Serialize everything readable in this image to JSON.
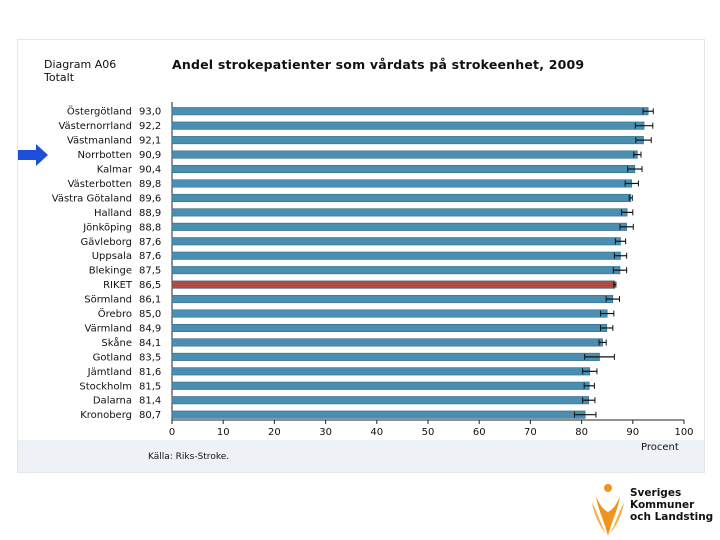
{
  "diagram": {
    "code": "Diagram A06",
    "subtitle": "Totalt",
    "title": "Andel strokepatienter som vårdats på strokeenhet, 2009",
    "source": "Källa: Riks-Stroke.",
    "x_unit": "Procent"
  },
  "branding": {
    "line1": "Sveriges",
    "line2": "Kommuner",
    "line3": "och Landsting"
  },
  "highlight_marker": "Norrbotten",
  "colors": {
    "bar": "#4a8fb1",
    "bar_highlight": "#b14a43",
    "arrow": "#1e4fd8",
    "logo_orange": "#f0941e"
  },
  "chart_data": {
    "type": "bar",
    "orientation": "horizontal",
    "title": "Andel strokepatienter som vårdats på strokeenhet, 2009",
    "xlabel": "Procent",
    "xlim": [
      0,
      100
    ],
    "xticks": [
      0,
      10,
      20,
      30,
      40,
      50,
      60,
      70,
      80,
      90,
      100
    ],
    "categories": [
      "Östergötland",
      "Västernorrland",
      "Västmanland",
      "Norrbotten",
      "Kalmar",
      "Västerbotten",
      "Västra Götaland",
      "Halland",
      "Jönköping",
      "Gävleborg",
      "Uppsala",
      "Blekinge",
      "RIKET",
      "Sörmland",
      "Örebro",
      "Värmland",
      "Skåne",
      "Gotland",
      "Jämtland",
      "Stockholm",
      "Dalarna",
      "Kronoberg"
    ],
    "value_labels": [
      "93,0",
      "92,2",
      "92,1",
      "90,9",
      "90,4",
      "89,8",
      "89,6",
      "88,9",
      "88,8",
      "87,6",
      "87,6",
      "87,5",
      "86,5",
      "86,1",
      "85,0",
      "84,9",
      "84,1",
      "83,5",
      "81,6",
      "81,5",
      "81,4",
      "80,7"
    ],
    "values": [
      93.0,
      92.2,
      92.1,
      90.9,
      90.4,
      89.8,
      89.6,
      88.9,
      88.8,
      87.6,
      87.6,
      87.5,
      86.5,
      86.1,
      85.0,
      84.9,
      84.1,
      83.5,
      81.6,
      81.5,
      81.4,
      80.7
    ],
    "error_low": [
      92.0,
      90.5,
      90.6,
      90.2,
      89.0,
      88.5,
      89.3,
      87.8,
      87.5,
      86.6,
      86.4,
      86.2,
      86.3,
      84.8,
      83.7,
      83.7,
      83.4,
      80.6,
      80.2,
      80.5,
      80.2,
      78.6
    ],
    "error_high": [
      94.0,
      93.9,
      93.6,
      91.6,
      91.8,
      91.1,
      89.9,
      90.0,
      90.1,
      88.6,
      88.8,
      88.8,
      86.7,
      87.4,
      86.3,
      86.1,
      84.8,
      86.4,
      83.0,
      82.5,
      82.6,
      82.8
    ],
    "highlight_category": "RIKET"
  }
}
